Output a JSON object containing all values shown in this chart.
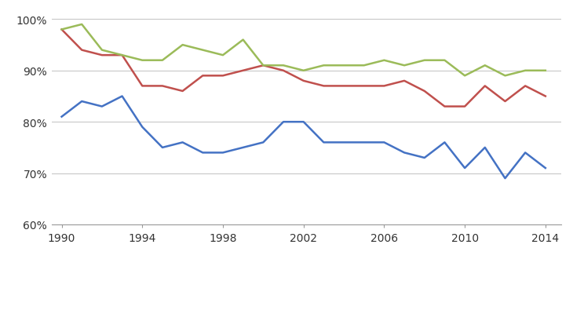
{
  "years": [
    1990,
    1991,
    1992,
    1993,
    1994,
    1995,
    1996,
    1997,
    1998,
    1999,
    2000,
    2001,
    2002,
    2003,
    2004,
    2005,
    2006,
    2007,
    2008,
    2009,
    2010,
    2011,
    2012,
    2013,
    2014
  ],
  "one_year": [
    81,
    84,
    83,
    85,
    79,
    75,
    76,
    74,
    74,
    75,
    76,
    80,
    80,
    76,
    76,
    76,
    76,
    74,
    73,
    76,
    71,
    75,
    69,
    74,
    71
  ],
  "three_year": [
    98,
    94,
    93,
    93,
    87,
    87,
    86,
    89,
    89,
    90,
    91,
    90,
    88,
    87,
    87,
    87,
    87,
    88,
    86,
    83,
    83,
    87,
    84,
    87,
    85
  ],
  "five_year": [
    98,
    99,
    94,
    93,
    92,
    92,
    95,
    94,
    93,
    96,
    91,
    91,
    90,
    91,
    91,
    91,
    92,
    91,
    92,
    92,
    89,
    91,
    89,
    90,
    90
  ],
  "color_one": "#4472C4",
  "color_three": "#C0504D",
  "color_five": "#9BBB59",
  "ylim": [
    60,
    102
  ],
  "yticks": [
    60,
    70,
    80,
    90,
    100
  ],
  "ytick_labels": [
    "60%",
    "70%",
    "80%",
    "90%",
    "100%"
  ],
  "xlim": [
    1989.5,
    2014.8
  ],
  "xticks": [
    1990,
    1994,
    1998,
    2002,
    2006,
    2010,
    2014
  ],
  "background_color": "#FFFFFF",
  "grid_color": "#C8C8C8",
  "linewidth": 1.8
}
